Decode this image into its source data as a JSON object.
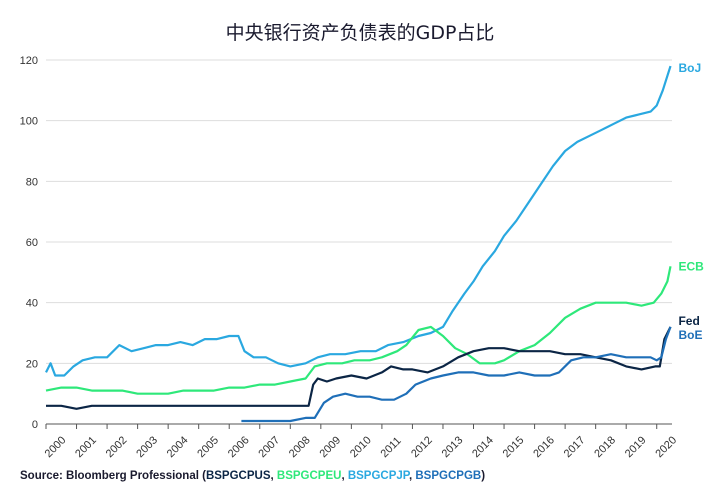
{
  "title": "中央银行资产负债表的GDP占比",
  "source": {
    "prefix": "Source: Bloomberg Professional (",
    "codes": [
      {
        "text": "BSPGCPUS",
        "color": "#0b2545"
      },
      {
        "text": "BSPGCPEU",
        "color": "#2ee87a"
      },
      {
        "text": "BSPGCPJP",
        "color": "#2aa8e0"
      },
      {
        "text": "BSPGCPGB",
        "color": "#1f6fb8"
      }
    ],
    "separator": ", ",
    "suffix": ")"
  },
  "chart_data": {
    "type": "line",
    "title": "中央银行资产负债表的GDP占比",
    "xlabel": "",
    "ylabel": "",
    "xlim": [
      2000,
      2020.5
    ],
    "ylim": [
      0,
      120
    ],
    "y_ticks": [
      0,
      20,
      40,
      60,
      80,
      100,
      120
    ],
    "x_ticks": [
      "2000",
      "2001",
      "2002",
      "2003",
      "2004",
      "2005",
      "2006",
      "2007",
      "2008",
      "2009",
      "2010",
      "2011",
      "2012",
      "2013",
      "2014",
      "2015",
      "2016",
      "2017",
      "2018",
      "2019",
      "2020"
    ],
    "grid": "horizontal",
    "series": [
      {
        "name": "BoJ",
        "color": "#2aa8e0",
        "points": [
          [
            2000,
            17
          ],
          [
            2000.15,
            20
          ],
          [
            2000.3,
            16
          ],
          [
            2000.6,
            16
          ],
          [
            2000.9,
            19
          ],
          [
            2001.2,
            21
          ],
          [
            2001.6,
            22
          ],
          [
            2002,
            22
          ],
          [
            2002.4,
            26
          ],
          [
            2002.8,
            24
          ],
          [
            2003.2,
            25
          ],
          [
            2003.6,
            26
          ],
          [
            2004,
            26
          ],
          [
            2004.4,
            27
          ],
          [
            2004.8,
            26
          ],
          [
            2005.2,
            28
          ],
          [
            2005.6,
            28
          ],
          [
            2006,
            29
          ],
          [
            2006.3,
            29
          ],
          [
            2006.5,
            24
          ],
          [
            2006.8,
            22
          ],
          [
            2007.2,
            22
          ],
          [
            2007.6,
            20
          ],
          [
            2008,
            19
          ],
          [
            2008.5,
            20
          ],
          [
            2008.9,
            22
          ],
          [
            2009.3,
            23
          ],
          [
            2009.8,
            23
          ],
          [
            2010.3,
            24
          ],
          [
            2010.8,
            24
          ],
          [
            2011.2,
            26
          ],
          [
            2011.7,
            27
          ],
          [
            2012.2,
            29
          ],
          [
            2012.6,
            30
          ],
          [
            2013,
            32
          ],
          [
            2013.3,
            37
          ],
          [
            2013.7,
            43
          ],
          [
            2014,
            47
          ],
          [
            2014.3,
            52
          ],
          [
            2014.7,
            57
          ],
          [
            2015,
            62
          ],
          [
            2015.4,
            67
          ],
          [
            2015.8,
            73
          ],
          [
            2016.2,
            79
          ],
          [
            2016.6,
            85
          ],
          [
            2017,
            90
          ],
          [
            2017.4,
            93
          ],
          [
            2017.8,
            95
          ],
          [
            2018.2,
            97
          ],
          [
            2018.6,
            99
          ],
          [
            2019,
            101
          ],
          [
            2019.4,
            102
          ],
          [
            2019.8,
            103
          ],
          [
            2020,
            105
          ],
          [
            2020.2,
            110
          ],
          [
            2020.45,
            118
          ]
        ]
      },
      {
        "name": "ECB",
        "color": "#2ee87a",
        "points": [
          [
            2000,
            11
          ],
          [
            2000.5,
            12
          ],
          [
            2001,
            12
          ],
          [
            2001.5,
            11
          ],
          [
            2002,
            11
          ],
          [
            2002.5,
            11
          ],
          [
            2003,
            10
          ],
          [
            2003.5,
            10
          ],
          [
            2004,
            10
          ],
          [
            2004.5,
            11
          ],
          [
            2005,
            11
          ],
          [
            2005.5,
            11
          ],
          [
            2006,
            12
          ],
          [
            2006.5,
            12
          ],
          [
            2007,
            13
          ],
          [
            2007.5,
            13
          ],
          [
            2008,
            14
          ],
          [
            2008.5,
            15
          ],
          [
            2008.8,
            19
          ],
          [
            2009.2,
            20
          ],
          [
            2009.7,
            20
          ],
          [
            2010.1,
            21
          ],
          [
            2010.6,
            21
          ],
          [
            2011,
            22
          ],
          [
            2011.5,
            24
          ],
          [
            2011.8,
            26
          ],
          [
            2012.2,
            31
          ],
          [
            2012.6,
            32
          ],
          [
            2013,
            29
          ],
          [
            2013.4,
            25
          ],
          [
            2013.8,
            23
          ],
          [
            2014.2,
            20
          ],
          [
            2014.7,
            20
          ],
          [
            2015,
            21
          ],
          [
            2015.5,
            24
          ],
          [
            2016,
            26
          ],
          [
            2016.5,
            30
          ],
          [
            2017,
            35
          ],
          [
            2017.5,
            38
          ],
          [
            2018,
            40
          ],
          [
            2018.5,
            40
          ],
          [
            2019,
            40
          ],
          [
            2019.5,
            39
          ],
          [
            2019.9,
            40
          ],
          [
            2020.15,
            43
          ],
          [
            2020.35,
            47
          ],
          [
            2020.45,
            52
          ]
        ]
      },
      {
        "name": "Fed",
        "color": "#0b2545",
        "points": [
          [
            2000,
            6
          ],
          [
            2000.5,
            6
          ],
          [
            2001,
            5
          ],
          [
            2001.5,
            6
          ],
          [
            2002,
            6
          ],
          [
            2003,
            6
          ],
          [
            2004,
            6
          ],
          [
            2005,
            6
          ],
          [
            2006,
            6
          ],
          [
            2006.6,
            6
          ],
          [
            2007,
            6
          ],
          [
            2007.5,
            6
          ],
          [
            2008,
            6
          ],
          [
            2008.6,
            6
          ],
          [
            2008.75,
            13
          ],
          [
            2008.9,
            15
          ],
          [
            2009.2,
            14
          ],
          [
            2009.5,
            15
          ],
          [
            2010,
            16
          ],
          [
            2010.5,
            15
          ],
          [
            2011,
            17
          ],
          [
            2011.3,
            19
          ],
          [
            2011.7,
            18
          ],
          [
            2012,
            18
          ],
          [
            2012.5,
            17
          ],
          [
            2013,
            19
          ],
          [
            2013.5,
            22
          ],
          [
            2014,
            24
          ],
          [
            2014.5,
            25
          ],
          [
            2015,
            25
          ],
          [
            2015.5,
            24
          ],
          [
            2016,
            24
          ],
          [
            2016.5,
            24
          ],
          [
            2017,
            23
          ],
          [
            2017.5,
            23
          ],
          [
            2018,
            22
          ],
          [
            2018.5,
            21
          ],
          [
            2019,
            19
          ],
          [
            2019.5,
            18
          ],
          [
            2019.95,
            19
          ],
          [
            2020.1,
            19
          ],
          [
            2020.25,
            28
          ],
          [
            2020.45,
            32
          ]
        ]
      },
      {
        "name": "BoE",
        "color": "#1f6fb8",
        "points": [
          [
            2006.4,
            1
          ],
          [
            2007,
            1
          ],
          [
            2007.5,
            1
          ],
          [
            2008,
            1
          ],
          [
            2008.5,
            2
          ],
          [
            2008.8,
            2
          ],
          [
            2009.1,
            7
          ],
          [
            2009.4,
            9
          ],
          [
            2009.8,
            10
          ],
          [
            2010.2,
            9
          ],
          [
            2010.6,
            9
          ],
          [
            2011,
            8
          ],
          [
            2011.4,
            8
          ],
          [
            2011.8,
            10
          ],
          [
            2012.1,
            13
          ],
          [
            2012.6,
            15
          ],
          [
            2013,
            16
          ],
          [
            2013.5,
            17
          ],
          [
            2014,
            17
          ],
          [
            2014.5,
            16
          ],
          [
            2015,
            16
          ],
          [
            2015.5,
            17
          ],
          [
            2016,
            16
          ],
          [
            2016.5,
            16
          ],
          [
            2016.8,
            17
          ],
          [
            2017.2,
            21
          ],
          [
            2017.6,
            22
          ],
          [
            2018,
            22
          ],
          [
            2018.5,
            23
          ],
          [
            2019,
            22
          ],
          [
            2019.5,
            22
          ],
          [
            2019.8,
            22
          ],
          [
            2020,
            21
          ],
          [
            2020.15,
            22
          ],
          [
            2020.3,
            28
          ],
          [
            2020.45,
            32
          ]
        ]
      }
    ]
  }
}
